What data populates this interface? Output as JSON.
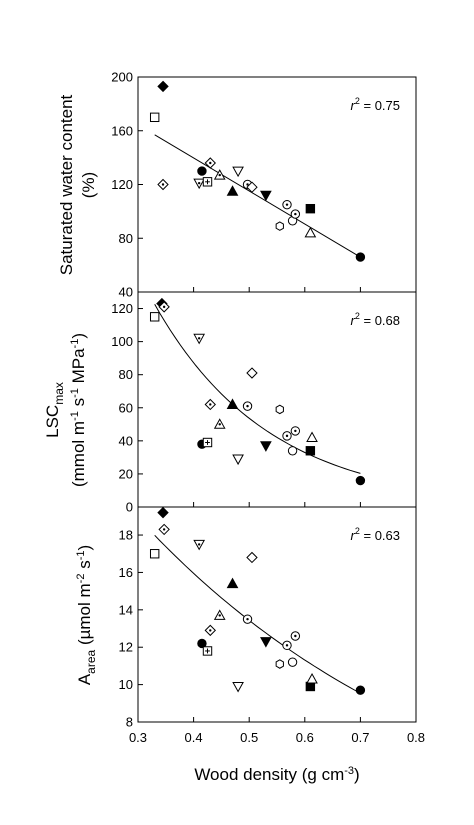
{
  "chart_data": {
    "type": "scatter",
    "xlabel": "Wood density (g cm-3)",
    "xlim": [
      0.3,
      0.8
    ],
    "xticks": [
      "0.3",
      "0.4",
      "0.5",
      "0.6",
      "0.7",
      "0.8"
    ],
    "grid": false,
    "legend": "none",
    "panels": [
      {
        "ylabel_line1": "Saturated water content",
        "ylabel_line2": "(%)",
        "ylim": [
          40,
          200
        ],
        "yticks": [
          "40",
          "80",
          "120",
          "160",
          "200"
        ],
        "annotation": "r2 = 0.75",
        "fit": "linear",
        "fit_line": [
          [
            0.33,
            157
          ],
          [
            0.7,
            66
          ]
        ],
        "points": [
          {
            "x": 0.345,
            "y": 193,
            "marker": "diamond-filled"
          },
          {
            "x": 0.33,
            "y": 170,
            "marker": "square-open"
          },
          {
            "x": 0.345,
            "y": 120,
            "marker": "diamond-dot"
          },
          {
            "x": 0.415,
            "y": 130,
            "marker": "circle-filled"
          },
          {
            "x": 0.41,
            "y": 121,
            "marker": "tri-down-dot"
          },
          {
            "x": 0.425,
            "y": 122,
            "marker": "square-plus"
          },
          {
            "x": 0.43,
            "y": 136,
            "marker": "diamond-dot"
          },
          {
            "x": 0.447,
            "y": 127,
            "marker": "tri-up-dot"
          },
          {
            "x": 0.47,
            "y": 115,
            "marker": "tri-up-filled"
          },
          {
            "x": 0.48,
            "y": 130,
            "marker": "tri-down-open"
          },
          {
            "x": 0.497,
            "y": 120,
            "marker": "circle-dot"
          },
          {
            "x": 0.505,
            "y": 118,
            "marker": "diamond-open"
          },
          {
            "x": 0.53,
            "y": 112,
            "marker": "tri-down-filled"
          },
          {
            "x": 0.555,
            "y": 89,
            "marker": "hexagon-open"
          },
          {
            "x": 0.568,
            "y": 105,
            "marker": "circle-dot"
          },
          {
            "x": 0.578,
            "y": 93,
            "marker": "circle-open"
          },
          {
            "x": 0.583,
            "y": 98,
            "marker": "circle-dot"
          },
          {
            "x": 0.61,
            "y": 102,
            "marker": "square-filled"
          },
          {
            "x": 0.61,
            "y": 84,
            "marker": "tri-up-open"
          },
          {
            "x": 0.7,
            "y": 66,
            "marker": "circle-filled"
          }
        ]
      },
      {
        "ylabel_line1": "LSCmax",
        "ylabel_line2": "(mmol m-1 s-1 MPa-1)",
        "ylim": [
          0,
          130
        ],
        "yticks": [
          "0",
          "20",
          "40",
          "60",
          "80",
          "100",
          "120"
        ],
        "annotation": "r2 = 0.68",
        "fit": "exponential",
        "fit_line": [
          [
            0.33,
            113
          ],
          [
            0.4,
            86
          ],
          [
            0.45,
            70
          ],
          [
            0.5,
            57
          ],
          [
            0.55,
            45
          ],
          [
            0.6,
            35
          ],
          [
            0.65,
            26
          ],
          [
            0.7,
            18
          ]
        ],
        "points": [
          {
            "x": 0.343,
            "y": 123,
            "marker": "diamond-filled"
          },
          {
            "x": 0.347,
            "y": 121,
            "marker": "diamond-dot"
          },
          {
            "x": 0.33,
            "y": 115,
            "marker": "square-open"
          },
          {
            "x": 0.41,
            "y": 102,
            "marker": "tri-down-dot"
          },
          {
            "x": 0.415,
            "y": 38,
            "marker": "circle-filled"
          },
          {
            "x": 0.425,
            "y": 39,
            "marker": "square-plus"
          },
          {
            "x": 0.43,
            "y": 62,
            "marker": "diamond-dot"
          },
          {
            "x": 0.447,
            "y": 50,
            "marker": "tri-up-dot"
          },
          {
            "x": 0.47,
            "y": 62,
            "marker": "tri-up-filled"
          },
          {
            "x": 0.48,
            "y": 29,
            "marker": "tri-down-open"
          },
          {
            "x": 0.497,
            "y": 61,
            "marker": "circle-dot"
          },
          {
            "x": 0.505,
            "y": 81,
            "marker": "diamond-open"
          },
          {
            "x": 0.53,
            "y": 37,
            "marker": "tri-down-filled"
          },
          {
            "x": 0.555,
            "y": 59,
            "marker": "hexagon-open"
          },
          {
            "x": 0.568,
            "y": 43,
            "marker": "circle-dot"
          },
          {
            "x": 0.578,
            "y": 34,
            "marker": "circle-open"
          },
          {
            "x": 0.583,
            "y": 46,
            "marker": "circle-dot"
          },
          {
            "x": 0.61,
            "y": 34,
            "marker": "square-filled"
          },
          {
            "x": 0.613,
            "y": 42,
            "marker": "tri-up-open"
          },
          {
            "x": 0.7,
            "y": 16,
            "marker": "circle-filled"
          }
        ]
      },
      {
        "ylabel_line1": "Aarea (µmol m-2 s-1)",
        "ylabel_line2": "",
        "ylim": [
          8,
          19.5
        ],
        "yticks": [
          "8",
          "10",
          "12",
          "14",
          "16",
          "18"
        ],
        "annotation": "r2 = 0.63",
        "fit": "exponential",
        "fit_line": [
          [
            0.33,
            18.2
          ],
          [
            0.4,
            16.0
          ],
          [
            0.45,
            14.6
          ],
          [
            0.5,
            13.3
          ],
          [
            0.55,
            12.2
          ],
          [
            0.6,
            11.2
          ],
          [
            0.65,
            10.4
          ],
          [
            0.7,
            9.7
          ]
        ],
        "points": [
          {
            "x": 0.345,
            "y": 19.2,
            "marker": "diamond-filled"
          },
          {
            "x": 0.347,
            "y": 18.3,
            "marker": "diamond-dot"
          },
          {
            "x": 0.33,
            "y": 17.0,
            "marker": "square-open"
          },
          {
            "x": 0.41,
            "y": 17.5,
            "marker": "tri-down-dot"
          },
          {
            "x": 0.415,
            "y": 12.2,
            "marker": "circle-filled"
          },
          {
            "x": 0.425,
            "y": 11.8,
            "marker": "square-plus"
          },
          {
            "x": 0.43,
            "y": 12.9,
            "marker": "diamond-dot"
          },
          {
            "x": 0.447,
            "y": 13.7,
            "marker": "tri-up-dot"
          },
          {
            "x": 0.47,
            "y": 15.4,
            "marker": "tri-up-filled"
          },
          {
            "x": 0.48,
            "y": 9.9,
            "marker": "tri-down-open"
          },
          {
            "x": 0.497,
            "y": 13.5,
            "marker": "circle-dot"
          },
          {
            "x": 0.505,
            "y": 16.8,
            "marker": "diamond-open"
          },
          {
            "x": 0.53,
            "y": 12.3,
            "marker": "tri-down-filled"
          },
          {
            "x": 0.555,
            "y": 11.1,
            "marker": "hexagon-open"
          },
          {
            "x": 0.568,
            "y": 12.1,
            "marker": "circle-dot"
          },
          {
            "x": 0.578,
            "y": 11.2,
            "marker": "circle-open"
          },
          {
            "x": 0.583,
            "y": 12.6,
            "marker": "circle-dot"
          },
          {
            "x": 0.61,
            "y": 9.9,
            "marker": "square-filled"
          },
          {
            "x": 0.613,
            "y": 10.3,
            "marker": "tri-up-open"
          },
          {
            "x": 0.7,
            "y": 9.7,
            "marker": "circle-filled"
          }
        ]
      }
    ]
  }
}
